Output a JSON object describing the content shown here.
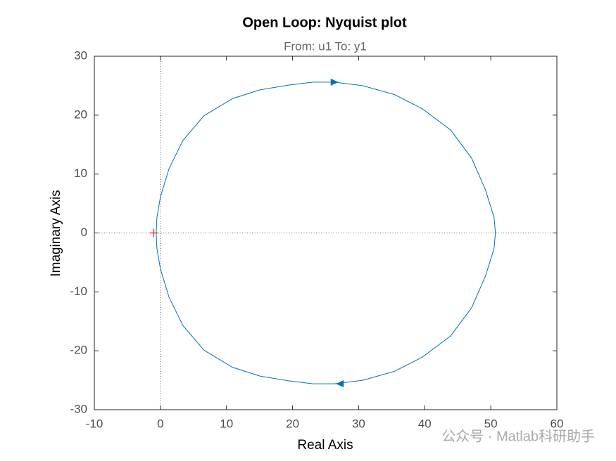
{
  "chart_data": {
    "type": "line",
    "title": "Open Loop: Nyquist plot",
    "subtitle": "From: u1  To: y1",
    "x_label": "Real Axis",
    "y_label": "Imaginary Axis",
    "x": [
      -0.64,
      -0.53,
      0,
      1.3,
      3.4,
      6.6,
      10.9,
      15.1,
      19.4,
      23.1,
      26.3,
      30.6,
      35.4,
      39.6,
      43.9,
      47.1,
      49.2,
      50.5,
      50.7,
      50.5,
      49.2,
      47.1,
      43.9,
      39.6,
      35.4,
      30.6,
      26.3,
      23.1,
      19.4,
      15.1,
      10.9,
      6.6,
      3.4,
      1.3,
      0,
      -0.53,
      -0.64
    ],
    "series": [
      {
        "color": "#0072bd",
        "values": [
          0,
          2.6,
          6.1,
          10.9,
          15.7,
          19.9,
          22.8,
          24.3,
          25.1,
          25.6,
          25.6,
          25.0,
          23.5,
          21.1,
          17.5,
          12.7,
          7.3,
          2.6,
          0,
          -2.6,
          -7.3,
          -12.7,
          -17.5,
          -21.1,
          -23.5,
          -25.0,
          -25.6,
          -25.6,
          -25.1,
          -24.3,
          -22.8,
          -19.9,
          -15.7,
          -10.9,
          -6.1,
          -2.6,
          0
        ]
      }
    ],
    "arrows": [
      {
        "x": 26.3,
        "y": 25.6
      },
      {
        "x": 27.2,
        "y": -25.6
      }
    ],
    "critical_point": {
      "x": -1,
      "y": 0,
      "color": "#e0201b"
    },
    "xlim": [
      -10,
      60
    ],
    "xticks": [
      -10,
      0,
      10,
      20,
      30,
      40,
      50,
      60
    ],
    "ylim": [
      -30,
      30
    ],
    "yticks": [
      -30,
      -20,
      -10,
      0,
      10,
      20,
      30
    ],
    "watermark": "公众号 · Matlab科研助手"
  }
}
